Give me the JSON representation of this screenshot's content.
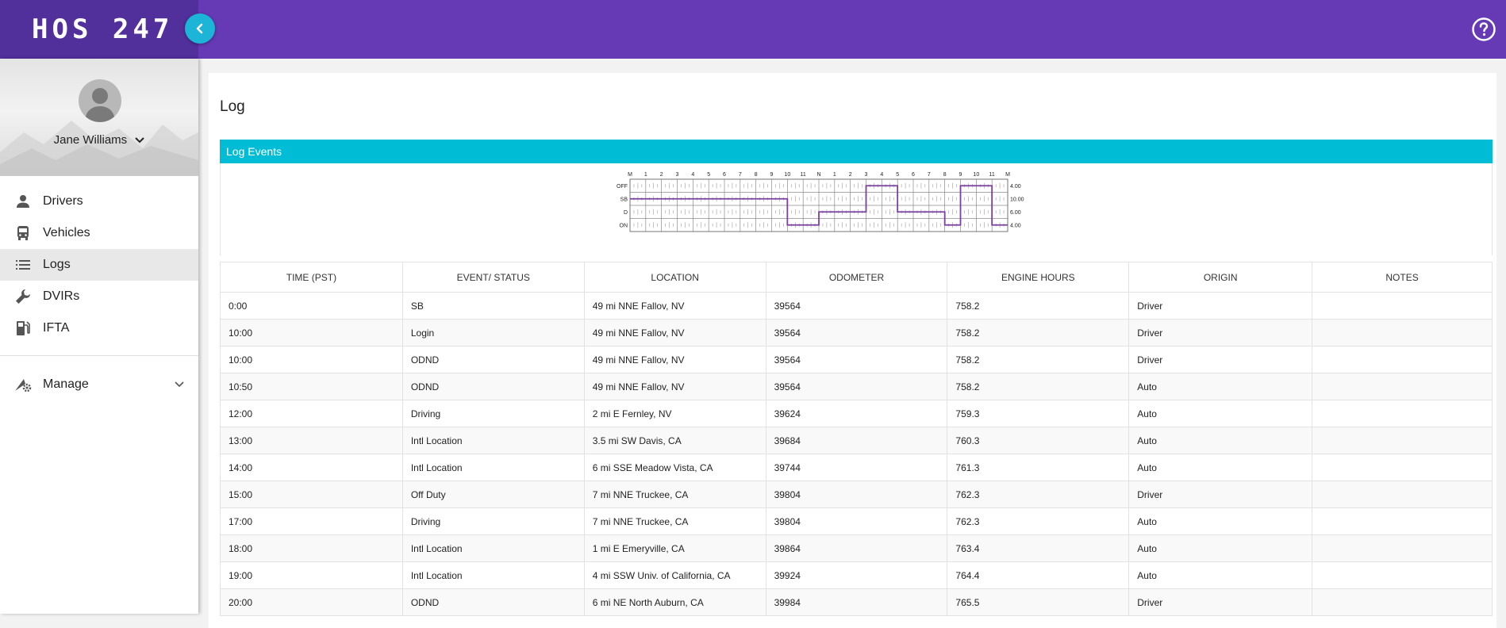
{
  "app": {
    "logo": "HOS 247"
  },
  "user": {
    "name": "Jane Williams"
  },
  "nav": [
    {
      "label": "Drivers",
      "icon": "person-icon"
    },
    {
      "label": "Vehicles",
      "icon": "bus-icon"
    },
    {
      "label": "Logs",
      "icon": "list-icon",
      "active": true
    },
    {
      "label": "DVIRs",
      "icon": "wrench-icon"
    },
    {
      "label": "IFTA",
      "icon": "fuel-pump-icon"
    }
  ],
  "manage": {
    "label": "Manage"
  },
  "page": {
    "title": "Log",
    "panel_title": "Log Events"
  },
  "chart_data": {
    "type": "line",
    "hour_labels": [
      "M",
      "1",
      "2",
      "3",
      "4",
      "5",
      "6",
      "7",
      "8",
      "9",
      "10",
      "11",
      "N",
      "1",
      "2",
      "3",
      "4",
      "5",
      "6",
      "7",
      "8",
      "9",
      "10",
      "11",
      "M"
    ],
    "status_labels": [
      "OFF",
      "SB",
      "D",
      "ON"
    ],
    "totals": [
      "4.00",
      "10.00",
      "6.00",
      "4.00"
    ],
    "segments": [
      {
        "start": 0,
        "end": 10,
        "status": "SB"
      },
      {
        "start": 10,
        "end": 12,
        "status": "ON"
      },
      {
        "start": 12,
        "end": 15,
        "status": "D"
      },
      {
        "start": 15,
        "end": 17,
        "status": "OFF"
      },
      {
        "start": 17,
        "end": 20,
        "status": "D"
      },
      {
        "start": 20,
        "end": 21,
        "status": "ON"
      },
      {
        "start": 21,
        "end": 23,
        "status": "OFF"
      },
      {
        "start": 23,
        "end": 24,
        "status": "ON"
      }
    ],
    "line_color": "#7b3fa0"
  },
  "table": {
    "headers": [
      "TIME (PST)",
      "EVENT/ STATUS",
      "LOCATION",
      "ODOMETER",
      "ENGINE HOURS",
      "ORIGIN",
      "NOTES"
    ],
    "rows": [
      [
        "0:00",
        "SB",
        "49 mi NNE Fallov, NV",
        "39564",
        "758.2",
        "Driver",
        ""
      ],
      [
        "10:00",
        "Login",
        "49 mi NNE Fallov, NV",
        "39564",
        "758.2",
        "Driver",
        ""
      ],
      [
        "10:00",
        "ODND",
        "49 mi NNE Fallov, NV",
        "39564",
        "758.2",
        "Driver",
        ""
      ],
      [
        "10:50",
        "ODND",
        "49 mi NNE Fallov, NV",
        "39564",
        "758.2",
        "Auto",
        ""
      ],
      [
        "12:00",
        "Driving",
        "2 mi E Fernley, NV",
        "39624",
        "759.3",
        "Auto",
        ""
      ],
      [
        "13:00",
        "Intl Location",
        "3.5 mi SW Davis, CA",
        "39684",
        "760.3",
        "Auto",
        ""
      ],
      [
        "14:00",
        "Intl Location",
        "6 mi SSE Meadow Vista, CA",
        "39744",
        "761.3",
        "Auto",
        ""
      ],
      [
        "15:00",
        "Off Duty",
        "7 mi NNE Truckee, CA",
        "39804",
        "762.3",
        "Driver",
        ""
      ],
      [
        "17:00",
        "Driving",
        "7 mi NNE Truckee, CA",
        "39804",
        "762.3",
        "Auto",
        ""
      ],
      [
        "18:00",
        "Intl Location",
        "1 mi E Emeryville, CA",
        "39864",
        "763.4",
        "Auto",
        ""
      ],
      [
        "19:00",
        "Intl Location",
        "4 mi SSW Univ. of California, CA",
        "39924",
        "764.4",
        "Auto",
        ""
      ],
      [
        "20:00",
        "ODND",
        "6 mi NE North Auburn, CA",
        "39984",
        "765.5",
        "Driver",
        ""
      ]
    ]
  }
}
